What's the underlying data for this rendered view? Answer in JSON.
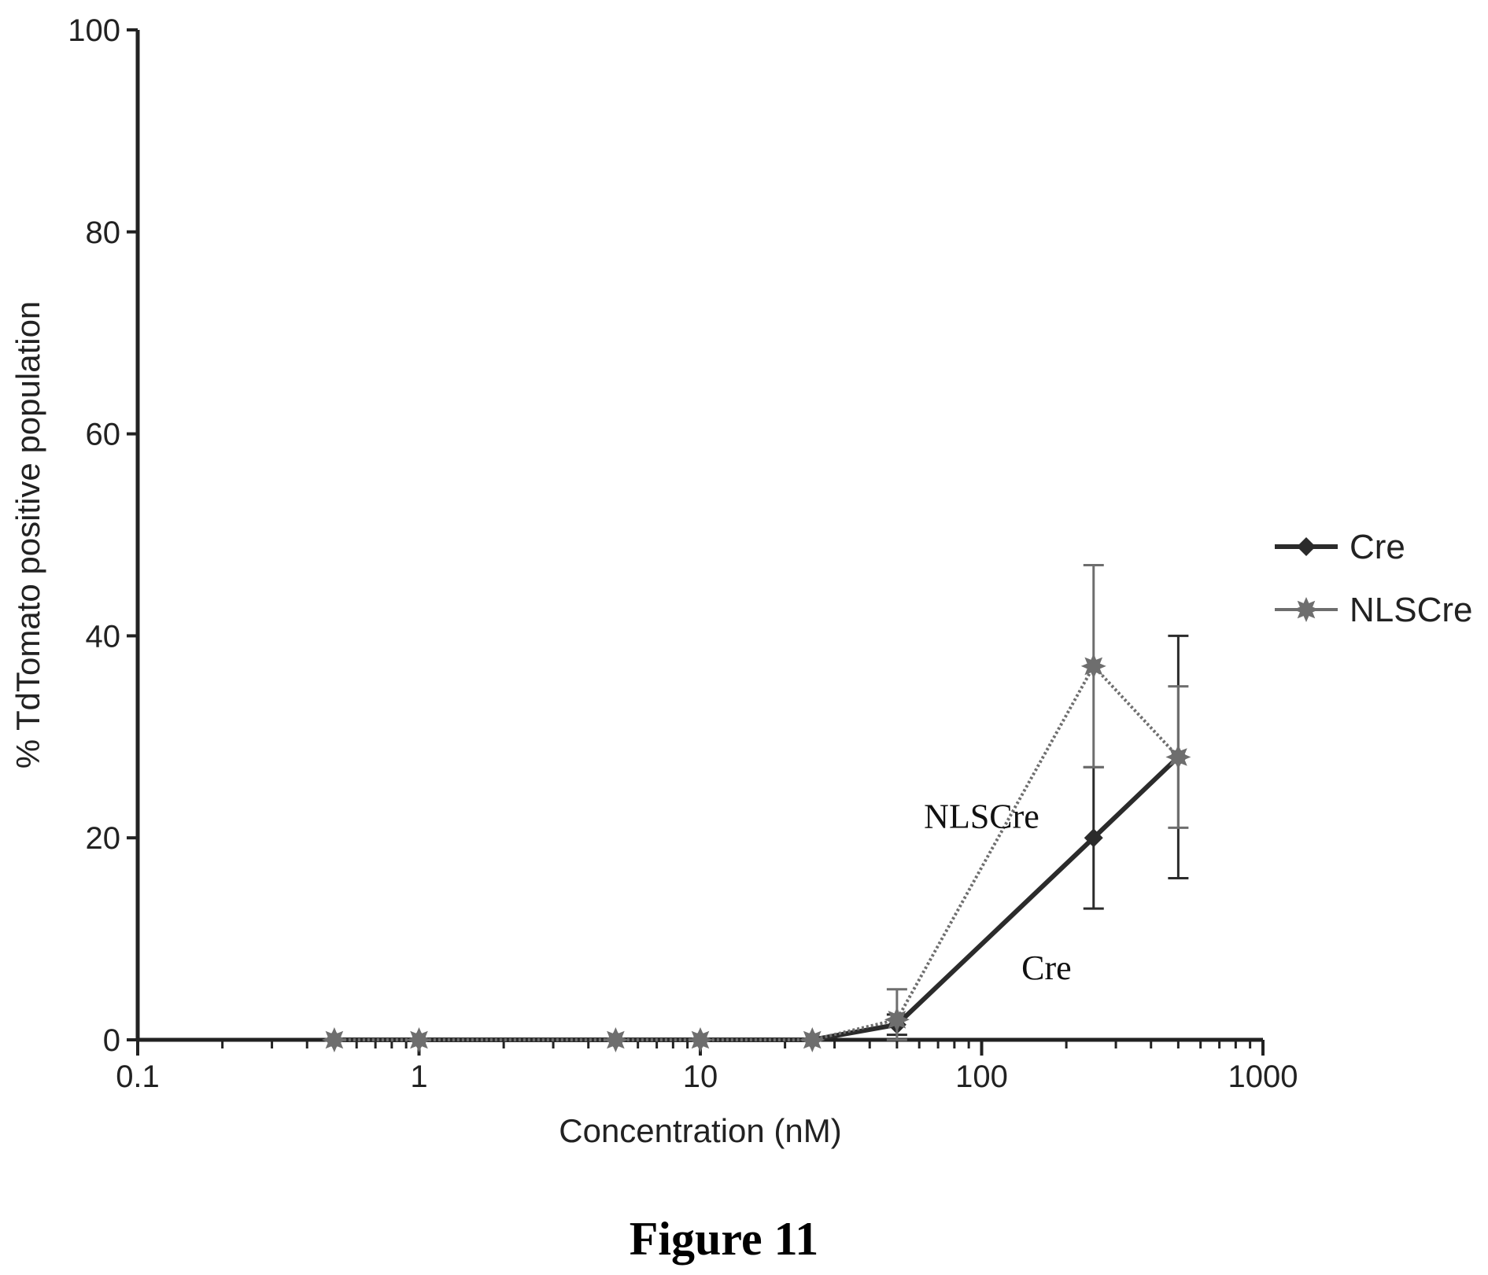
{
  "chart_data": {
    "type": "line",
    "x_scale": "log",
    "xlim": [
      0.1,
      1000
    ],
    "ylim": [
      0,
      100
    ],
    "xlabel": "Concentration (nM)",
    "ylabel": "% TdTomato positive population",
    "x_ticks": [
      0.1,
      1,
      10,
      100,
      1000
    ],
    "x_tick_labels": [
      "0.1",
      "1",
      "10",
      "100",
      "1000"
    ],
    "y_ticks": [
      0,
      20,
      40,
      60,
      80,
      100
    ],
    "y_tick_labels": [
      "0",
      "20",
      "40",
      "60",
      "80",
      "100"
    ],
    "grid": false,
    "legend_position": "right",
    "series": [
      {
        "name": "Cre",
        "marker": "diamond",
        "color": "#2b2b2b",
        "x": [
          0.5,
          1,
          5,
          10,
          25,
          50,
          250,
          500
        ],
        "y": [
          0,
          0,
          0,
          0,
          0,
          1.5,
          20,
          28
        ],
        "error": [
          0,
          0,
          0,
          0,
          0,
          1,
          7,
          12
        ]
      },
      {
        "name": "NLSCre",
        "marker": "star",
        "color": "#6e6e6e",
        "x": [
          0.5,
          1,
          5,
          10,
          25,
          50,
          250,
          500
        ],
        "y": [
          0,
          0,
          0,
          0,
          0,
          2,
          37,
          28
        ],
        "error": [
          0,
          0,
          0,
          0,
          0,
          3,
          10,
          7
        ]
      }
    ],
    "annotations": [
      {
        "text": "NLSCre",
        "x": 100,
        "y": 21
      },
      {
        "text": "Cre",
        "x": 170,
        "y": 6
      }
    ],
    "caption": "Figure 11"
  }
}
